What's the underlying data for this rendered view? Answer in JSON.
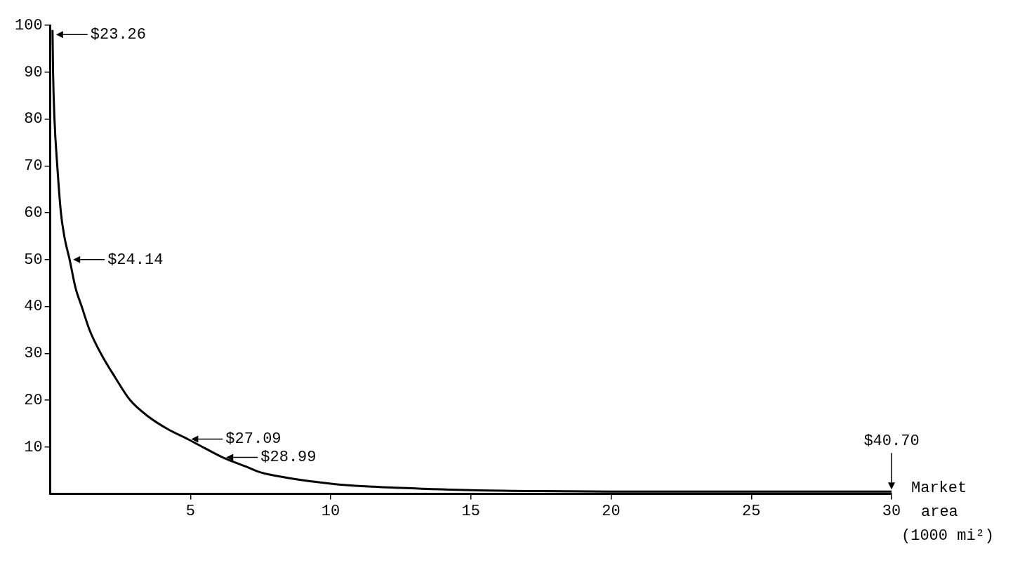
{
  "chart_data": {
    "type": "line",
    "xlabel": "Market area (1000 mi²)",
    "series": [
      {
        "color": "#000000",
        "x": [
          0.08,
          0.1,
          0.15,
          0.25,
          0.38,
          0.5,
          0.69,
          0.9,
          1.12,
          1.4,
          1.8,
          2.3,
          2.85,
          3.5,
          4.2,
          4.9,
          5.5,
          6.15,
          7,
          7.5,
          8.5,
          10,
          11,
          12.5,
          15,
          17.5,
          20,
          25,
          30
        ],
        "values": [
          99,
          90,
          80,
          70,
          60,
          55,
          50,
          44,
          40,
          35,
          30,
          25,
          20,
          16.5,
          13.8,
          11.7,
          9.8,
          7.8,
          5.8,
          4.6,
          3.4,
          2.2,
          1.7,
          1.3,
          0.8,
          0.6,
          0.5,
          0.5,
          0.5
        ]
      }
    ],
    "xlim": [
      0,
      30
    ],
    "xticks": [
      5,
      10,
      15,
      20,
      25,
      30
    ],
    "ylim": [
      0,
      100
    ],
    "yticks": [
      10,
      20,
      30,
      40,
      50,
      60,
      70,
      80,
      90,
      100
    ],
    "grid": false,
    "legend": false,
    "marker": "none",
    "line_style": "solid",
    "annotations": [
      {
        "text": "$23.26",
        "x": 0.08,
        "y": 98
      },
      {
        "text": "$24.14",
        "x": 0.69,
        "y": 50
      },
      {
        "text": "$27.09",
        "x": 4.9,
        "y": 11.7
      },
      {
        "text": "$28.99",
        "x": 6.15,
        "y": 7.8
      },
      {
        "text": "$40.70",
        "x": 30,
        "y": 0.5
      }
    ]
  }
}
